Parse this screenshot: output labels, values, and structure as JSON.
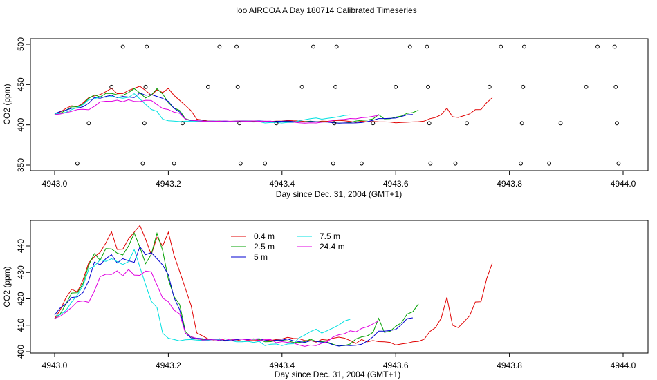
{
  "figure": {
    "title": "loo AIRCOA A  Day 180714  Calibrated Timeseries"
  },
  "chart_data": [
    {
      "type": "line",
      "panel": "top",
      "xlabel": "Day since Dec. 31, 2004 (GMT+1)",
      "ylabel": "CO2 (ppm)",
      "xlim": [
        4942.98,
        4944.02
      ],
      "ylim": [
        345,
        505
      ],
      "xticks": [
        "4943.0",
        "4943.2",
        "4943.4",
        "4943.6",
        "4943.8",
        "4944.0"
      ],
      "yticks": [
        "350",
        "400",
        "450",
        "500"
      ],
      "x_start": 4943.0,
      "x_step": 0.01,
      "series": [
        {
          "color": "#e00000",
          "values": [
            412.5,
            415.9,
            420.4,
            423.6,
            422.6,
            427.2,
            433.7,
            435.9,
            437.6,
            441.1,
            445.4,
            438.7,
            438.8,
            442.7,
            445.2,
            447.8,
            442.6,
            436.7,
            443.3,
            440.0,
            445.2,
            436.5,
            430.3,
            423.9,
            417.5,
            407.1,
            406.0,
            404.8,
            404.4,
            404.9,
            404.3,
            404.2,
            404.5,
            404.0,
            404.2,
            404.2,
            404.3,
            404.5,
            404.2,
            404.6,
            404.8,
            405.4,
            405.0,
            404.9,
            404.2,
            404.2,
            403.6,
            404.6,
            404.4,
            405.1,
            405.5,
            405.1,
            404.2,
            403.1,
            404.6,
            403.7,
            404.2,
            403.8,
            403.7,
            403.5,
            402.5,
            402.9,
            403.2,
            403.7,
            403.9,
            404.7,
            407.6,
            409.1,
            412.7,
            420.6,
            410.0,
            409.1,
            411.3,
            413.6,
            418.8,
            418.9,
            427.6,
            433.6
          ]
        },
        {
          "color": "#00a000",
          "values": [
            412.4,
            414.3,
            418.1,
            422.2,
            422.3,
            425.8,
            432.8,
            437.1,
            434.6,
            439.0,
            438.9,
            437.3,
            436.6,
            440.0,
            444.9,
            439.5,
            433.3,
            436.8,
            444.8,
            438.3,
            427.4,
            420.9,
            417.8,
            407.6,
            405.6,
            404.8,
            404.6,
            404.7,
            404.5,
            404.4,
            404.0,
            404.5,
            404.6,
            404.8,
            404.7,
            404.7,
            404.6,
            403.7,
            403.8,
            404.2,
            404.3,
            404.1,
            403.5,
            403.5,
            403.8,
            404.7,
            403.9,
            403.8,
            403.6,
            402.8,
            402.2,
            402.3,
            402.9,
            404.8,
            405.6,
            406.0,
            407.3,
            412.6,
            407.3,
            407.7,
            409.6,
            410.9,
            414.2,
            415.1,
            418.1
          ]
        },
        {
          "color": "#0000d0",
          "values": [
            413.9,
            416.6,
            418.1,
            420.5,
            420.7,
            422.4,
            426.9,
            433.9,
            432.9,
            435.2,
            436.7,
            433.6,
            435.2,
            434.4,
            433.8,
            439.7,
            436.7,
            437.5,
            435.2,
            432.8,
            429.1,
            420.5,
            415.9,
            407.0,
            405.2,
            405.1,
            404.9,
            404.4,
            404.8,
            404.1,
            404.3,
            404.3,
            404.5,
            404.8,
            404.6,
            404.8,
            404.9,
            404.4,
            404.0,
            404.4,
            404.4,
            404.8,
            404.1,
            403.8,
            403.5,
            404.1,
            403.9,
            403.6,
            403.4,
            402.6,
            402.1,
            402.4,
            402.3,
            402.4,
            402.8,
            404.0,
            405.6,
            407.8,
            407.8,
            408.0,
            408.4,
            410.2,
            412.5,
            412.8
          ]
        },
        {
          "color": "#00e0e0",
          "values": [
            413.4,
            414.0,
            415.6,
            418.8,
            421.5,
            425.0,
            431.2,
            432.4,
            434.8,
            434.2,
            435.2,
            434.1,
            433.0,
            434.1,
            438.6,
            432.0,
            425.4,
            419.1,
            416.7,
            407.0,
            405.1,
            404.6,
            404.1,
            404.5,
            404.6,
            404.4,
            404.3,
            404.3,
            404.6,
            404.6,
            404.9,
            404.2,
            403.7,
            403.7,
            403.9,
            403.5,
            403.9,
            402.3,
            402.8,
            402.9,
            402.3,
            402.9,
            403.0,
            405.2,
            406.3,
            407.6,
            408.5,
            407.0,
            408.0,
            409.0,
            410.1,
            411.6,
            412.3
          ]
        },
        {
          "color": "#e000e0",
          "values": [
            412.6,
            413.4,
            415.0,
            416.8,
            418.9,
            419.2,
            418.7,
            423.0,
            428.4,
            429.3,
            429.2,
            430.6,
            428.7,
            431.1,
            429.0,
            428.9,
            430.5,
            430.2,
            425.2,
            420.3,
            418.9,
            415.7,
            414.3,
            407.0,
            405.7,
            405.0,
            404.4,
            404.5,
            404.5,
            404.4,
            404.9,
            404.4,
            404.8,
            404.7,
            404.4,
            404.9,
            404.3,
            404.5,
            404.6,
            403.4,
            403.8,
            403.5,
            403.3,
            402.5,
            402.0,
            402.5,
            402.3,
            403.2,
            403.8,
            405.6,
            406.4,
            406.8,
            407.9,
            407.5,
            408.8,
            409.4,
            410.5,
            411.7
          ]
        }
      ],
      "points": [
        {
          "x": 4943.04,
          "y": 352
        },
        {
          "x": 4943.06,
          "y": 402
        },
        {
          "x": 4943.1,
          "y": 447
        },
        {
          "x": 4943.12,
          "y": 497
        },
        {
          "x": 4943.155,
          "y": 352
        },
        {
          "x": 4943.158,
          "y": 402
        },
        {
          "x": 4943.16,
          "y": 447
        },
        {
          "x": 4943.162,
          "y": 497
        },
        {
          "x": 4943.21,
          "y": 352
        },
        {
          "x": 4943.225,
          "y": 402
        },
        {
          "x": 4943.27,
          "y": 447
        },
        {
          "x": 4943.29,
          "y": 497
        },
        {
          "x": 4943.32,
          "y": 497
        },
        {
          "x": 4943.322,
          "y": 447
        },
        {
          "x": 4943.325,
          "y": 402
        },
        {
          "x": 4943.327,
          "y": 352
        },
        {
          "x": 4943.37,
          "y": 352
        },
        {
          "x": 4943.39,
          "y": 402
        },
        {
          "x": 4943.435,
          "y": 447
        },
        {
          "x": 4943.455,
          "y": 497
        },
        {
          "x": 4943.49,
          "y": 352
        },
        {
          "x": 4943.492,
          "y": 402
        },
        {
          "x": 4943.494,
          "y": 447
        },
        {
          "x": 4943.496,
          "y": 497
        },
        {
          "x": 4943.54,
          "y": 352
        },
        {
          "x": 4943.56,
          "y": 402
        },
        {
          "x": 4943.6,
          "y": 447
        },
        {
          "x": 4943.625,
          "y": 497
        },
        {
          "x": 4943.655,
          "y": 497
        },
        {
          "x": 4943.657,
          "y": 447
        },
        {
          "x": 4943.659,
          "y": 402
        },
        {
          "x": 4943.661,
          "y": 352
        },
        {
          "x": 4943.705,
          "y": 352
        },
        {
          "x": 4943.725,
          "y": 402
        },
        {
          "x": 4943.765,
          "y": 447
        },
        {
          "x": 4943.785,
          "y": 497
        },
        {
          "x": 4943.82,
          "y": 352
        },
        {
          "x": 4943.822,
          "y": 402
        },
        {
          "x": 4943.824,
          "y": 447
        },
        {
          "x": 4943.826,
          "y": 497
        },
        {
          "x": 4943.87,
          "y": 352
        },
        {
          "x": 4943.89,
          "y": 402
        },
        {
          "x": 4943.935,
          "y": 447
        },
        {
          "x": 4943.955,
          "y": 497
        },
        {
          "x": 4943.985,
          "y": 497
        },
        {
          "x": 4943.987,
          "y": 447
        },
        {
          "x": 4943.989,
          "y": 402
        },
        {
          "x": 4943.992,
          "y": 352
        }
      ]
    },
    {
      "type": "line",
      "panel": "bottom",
      "xlabel": "Day since Dec. 31, 2004 (GMT+1)",
      "ylabel": "CO2 (ppm)",
      "xlim": [
        4942.98,
        4944.02
      ],
      "ylim": [
        400,
        447
      ],
      "xticks": [
        "4943.0",
        "4943.2",
        "4943.4",
        "4943.6",
        "4943.8",
        "4944.0"
      ],
      "yticks": [
        "400",
        "410",
        "420",
        "430",
        "440"
      ],
      "x_start": 4943.0,
      "x_step": 0.01,
      "legend": {
        "position": "top-center",
        "columns": 2
      },
      "series": [
        {
          "name": "0.4 m",
          "color": "#e00000",
          "values": [
            412.5,
            415.9,
            420.4,
            423.6,
            422.6,
            427.2,
            433.7,
            435.9,
            437.6,
            441.1,
            445.4,
            438.7,
            438.8,
            442.7,
            445.2,
            447.8,
            442.6,
            436.7,
            443.3,
            440.0,
            445.2,
            436.5,
            430.3,
            423.9,
            417.5,
            407.1,
            406.0,
            404.8,
            404.4,
            404.9,
            404.3,
            404.2,
            404.5,
            404.0,
            404.2,
            404.2,
            404.3,
            404.5,
            404.2,
            404.6,
            404.8,
            405.4,
            405.0,
            404.9,
            404.2,
            404.2,
            403.6,
            404.6,
            404.4,
            405.1,
            405.5,
            405.1,
            404.2,
            403.1,
            404.6,
            403.7,
            404.2,
            403.8,
            403.7,
            403.5,
            402.5,
            402.9,
            403.2,
            403.7,
            403.9,
            404.7,
            407.6,
            409.1,
            412.7,
            420.6,
            410.0,
            409.1,
            411.3,
            413.6,
            418.8,
            418.9,
            427.6,
            433.6
          ]
        },
        {
          "name": "2.5 m",
          "color": "#00a000",
          "values": [
            412.4,
            414.3,
            418.1,
            422.2,
            422.3,
            425.8,
            432.8,
            437.1,
            434.6,
            439.0,
            438.9,
            437.3,
            436.6,
            440.0,
            444.9,
            439.5,
            433.3,
            436.8,
            444.8,
            438.3,
            427.4,
            420.9,
            417.8,
            407.6,
            405.6,
            404.8,
            404.6,
            404.7,
            404.5,
            404.4,
            404.0,
            404.5,
            404.6,
            404.8,
            404.7,
            404.7,
            404.6,
            403.7,
            403.8,
            404.2,
            404.3,
            404.1,
            403.5,
            403.5,
            403.8,
            404.7,
            403.9,
            403.8,
            403.6,
            402.8,
            402.2,
            402.3,
            402.9,
            404.8,
            405.6,
            406.0,
            407.3,
            412.6,
            407.3,
            407.7,
            409.6,
            410.9,
            414.2,
            415.1,
            418.1
          ]
        },
        {
          "name": "5 m",
          "color": "#0000d0",
          "values": [
            413.9,
            416.6,
            418.1,
            420.5,
            420.7,
            422.4,
            426.9,
            433.9,
            432.9,
            435.2,
            436.7,
            433.6,
            435.2,
            434.4,
            433.8,
            439.7,
            436.7,
            437.5,
            435.2,
            432.8,
            429.1,
            420.5,
            415.9,
            407.0,
            405.2,
            405.1,
            404.9,
            404.4,
            404.8,
            404.1,
            404.3,
            404.3,
            404.5,
            404.8,
            404.6,
            404.8,
            404.9,
            404.4,
            404.0,
            404.4,
            404.4,
            404.8,
            404.1,
            403.8,
            403.5,
            404.1,
            403.9,
            403.6,
            403.4,
            402.6,
            402.1,
            402.4,
            402.3,
            402.4,
            402.8,
            404.0,
            405.6,
            407.8,
            407.8,
            408.0,
            408.4,
            410.2,
            412.5,
            412.8
          ]
        },
        {
          "name": "7.5 m",
          "color": "#00e0e0",
          "values": [
            413.4,
            414.0,
            415.6,
            418.8,
            421.5,
            425.0,
            431.2,
            432.4,
            434.8,
            434.2,
            435.2,
            434.1,
            433.0,
            434.1,
            438.6,
            432.0,
            425.4,
            419.1,
            416.7,
            407.0,
            405.1,
            404.6,
            404.1,
            404.5,
            404.6,
            404.4,
            404.3,
            404.3,
            404.6,
            404.6,
            404.9,
            404.2,
            403.7,
            403.7,
            403.9,
            403.5,
            403.9,
            402.3,
            402.8,
            402.9,
            402.3,
            402.9,
            403.0,
            405.2,
            406.3,
            407.6,
            408.5,
            407.0,
            408.0,
            409.0,
            410.1,
            411.6,
            412.3
          ]
        },
        {
          "name": "24.4 m",
          "color": "#e000e0",
          "values": [
            412.6,
            413.4,
            415.0,
            416.8,
            418.9,
            419.2,
            418.7,
            423.0,
            428.4,
            429.3,
            429.2,
            430.6,
            428.7,
            431.1,
            429.0,
            428.9,
            430.5,
            430.2,
            425.2,
            420.3,
            418.9,
            415.7,
            414.3,
            407.0,
            405.7,
            405.0,
            404.4,
            404.5,
            404.5,
            404.4,
            404.9,
            404.4,
            404.8,
            404.7,
            404.4,
            404.9,
            404.3,
            404.5,
            404.6,
            403.4,
            403.8,
            403.5,
            403.3,
            402.5,
            402.0,
            402.5,
            402.3,
            403.2,
            403.8,
            405.6,
            406.4,
            406.8,
            407.9,
            407.5,
            408.8,
            409.4,
            410.5,
            411.7
          ]
        }
      ]
    }
  ]
}
